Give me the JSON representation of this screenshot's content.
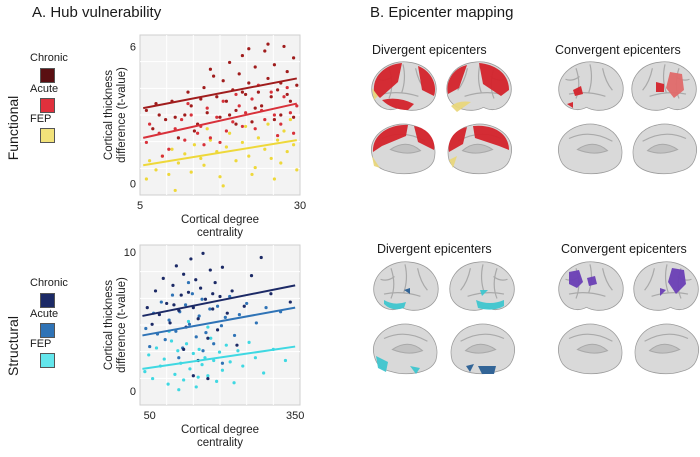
{
  "panel_a": {
    "title": "A. Hub vulnerability"
  },
  "panel_b": {
    "title": "B. Epicenter mapping",
    "functional": {
      "divergent_title": "Divergent epicenters",
      "convergent_title": "Convergent epicenters"
    },
    "structural": {
      "divergent_title": "Divergent epicenters",
      "convergent_title": "Convergent epicenters"
    }
  },
  "rows": {
    "functional": "Functional",
    "structural": "Structural"
  },
  "legend_functional": [
    {
      "label": "Chronic",
      "color": "#5a0f12"
    },
    {
      "label": "Acute",
      "color": "#e0303c"
    },
    {
      "label": "FEP",
      "color": "#f2e27a"
    }
  ],
  "legend_structural": [
    {
      "label": "Chronic",
      "color": "#1c2a66"
    },
    {
      "label": "Acute",
      "color": "#2f73b6"
    },
    {
      "label": "FEP",
      "color": "#63e6ec"
    }
  ],
  "brain_colors": {
    "cortex": "#d9d9d9",
    "sulcus": "#a9a9a9",
    "func_red": "#d4232b",
    "func_yellow": "#e9d77c",
    "func_light_red": "#e06a6a",
    "struct_cyan": "#3fc6cf",
    "struct_blue": "#2a5f94",
    "struct_purple": "#6a3fb5"
  },
  "chart_data": [
    {
      "type": "scatter",
      "name": "functional",
      "xlabel": "Cortical degree centrality",
      "ylabel": "Cortical thickness difference  (t-value)",
      "xlim": [
        5,
        30
      ],
      "ylim": [
        -0.5,
        6.5
      ],
      "xticks": [
        5,
        30
      ],
      "yticks": [
        0,
        6
      ],
      "series": [
        {
          "name": "Chronic",
          "color": "#a01c1c",
          "fit": [
            [
              5.5,
              3.3
            ],
            [
              29.5,
              4.6
            ]
          ],
          "points": [
            [
              6,
              3.2
            ],
            [
              7,
              2.4
            ],
            [
              7.5,
              3.5
            ],
            [
              9,
              2.8
            ],
            [
              10,
              3.6
            ],
            [
              11,
              2.0
            ],
            [
              12,
              3.0
            ],
            [
              12.5,
              4.0
            ],
            [
              13,
              3.4
            ],
            [
              14,
              2.6
            ],
            [
              15,
              4.2
            ],
            [
              15.5,
              3.1
            ],
            [
              16,
              5.0
            ],
            [
              17,
              3.8
            ],
            [
              17.5,
              2.9
            ],
            [
              18,
              4.5
            ],
            [
              18.5,
              3.6
            ],
            [
              19,
              5.3
            ],
            [
              19.5,
              4.1
            ],
            [
              20,
              3.2
            ],
            [
              20.5,
              4.8
            ],
            [
              21,
              5.6
            ],
            [
              21.5,
              3.9
            ],
            [
              22,
              4.4
            ],
            [
              22.5,
              2.7
            ],
            [
              23,
              5.1
            ],
            [
              23.5,
              4.0
            ],
            [
              24,
              3.4
            ],
            [
              24.5,
              5.8
            ],
            [
              25,
              4.6
            ],
            [
              25.5,
              3.8
            ],
            [
              26,
              5.2
            ],
            [
              26.5,
              4.1
            ],
            [
              27,
              3.0
            ],
            [
              27.5,
              6.0
            ],
            [
              28,
              4.9
            ],
            [
              28.5,
              3.6
            ],
            [
              29,
              5.5
            ],
            [
              29.5,
              4.3
            ],
            [
              10.5,
              2.9
            ],
            [
              14.5,
              3.7
            ],
            [
              20,
              2.6
            ],
            [
              23,
              3.3
            ],
            [
              26,
              2.8
            ],
            [
              28,
              3.9
            ],
            [
              8,
              3.0
            ],
            [
              16.5,
              4.7
            ],
            [
              22,
              5.9
            ],
            [
              25,
              6.1
            ],
            [
              29,
              2.9
            ],
            [
              19,
              3.0
            ],
            [
              13.5,
              2.3
            ],
            [
              21,
              4.0
            ],
            [
              27,
              4.4
            ]
          ]
        },
        {
          "name": "Acute",
          "color": "#d8313a",
          "fit": [
            [
              5.5,
              2.0
            ],
            [
              29.5,
              3.5
            ]
          ],
          "points": [
            [
              6,
              1.8
            ],
            [
              6.5,
              2.6
            ],
            [
              8,
              2.2
            ],
            [
              9.5,
              1.5
            ],
            [
              10.5,
              2.4
            ],
            [
              11.5,
              2.8
            ],
            [
              12,
              1.9
            ],
            [
              13,
              3.0
            ],
            [
              14,
              2.2
            ],
            [
              14.5,
              2.5
            ],
            [
              15.5,
              3.3
            ],
            [
              16,
              2.0
            ],
            [
              17,
              2.9
            ],
            [
              18,
              3.6
            ],
            [
              18.5,
              2.3
            ],
            [
              19.5,
              2.7
            ],
            [
              20,
              3.9
            ],
            [
              21,
              2.5
            ],
            [
              21.5,
              3.1
            ],
            [
              22.5,
              3.7
            ],
            [
              23,
              2.4
            ],
            [
              24,
              3.2
            ],
            [
              24.5,
              2.8
            ],
            [
              25.5,
              4.0
            ],
            [
              26,
              3.0
            ],
            [
              27,
              2.6
            ],
            [
              27.5,
              3.8
            ],
            [
              28.5,
              3.1
            ],
            [
              29,
              2.2
            ],
            [
              29.5,
              3.4
            ],
            [
              8.5,
              1.2
            ],
            [
              12.5,
              3.5
            ],
            [
              17.5,
              1.8
            ],
            [
              23.5,
              4.3
            ],
            [
              26.5,
              2.1
            ],
            [
              20.5,
              3.4
            ],
            [
              15,
              1.7
            ],
            [
              28,
              4.2
            ]
          ]
        },
        {
          "name": "FEP",
          "color": "#eed83a",
          "fit": [
            [
              5.5,
              0.8
            ],
            [
              29.5,
              1.9
            ]
          ],
          "points": [
            [
              6,
              0.2
            ],
            [
              6.5,
              1.0
            ],
            [
              7.5,
              0.6
            ],
            [
              8.5,
              1.2
            ],
            [
              9.5,
              0.4
            ],
            [
              10,
              1.5
            ],
            [
              11,
              0.9
            ],
            [
              12,
              1.3
            ],
            [
              13,
              0.5
            ],
            [
              13.5,
              1.7
            ],
            [
              14.5,
              1.1
            ],
            [
              15,
              0.8
            ],
            [
              16,
              1.9
            ],
            [
              17,
              1.4
            ],
            [
              17.5,
              0.3
            ],
            [
              18.5,
              1.6
            ],
            [
              19,
              2.2
            ],
            [
              20,
              1.0
            ],
            [
              21,
              1.8
            ],
            [
              21.5,
              2.5
            ],
            [
              22,
              1.2
            ],
            [
              23,
              0.7
            ],
            [
              23.5,
              2.0
            ],
            [
              24.5,
              1.5
            ],
            [
              25,
              2.6
            ],
            [
              25.5,
              1.1
            ],
            [
              26.5,
              1.9
            ],
            [
              27,
              0.9
            ],
            [
              27.5,
              2.3
            ],
            [
              28,
              1.4
            ],
            [
              28.5,
              2.8
            ],
            [
              29,
              1.7
            ],
            [
              29.5,
              0.6
            ],
            [
              10.5,
              -0.3
            ],
            [
              18,
              -0.1
            ],
            [
              26,
              0.2
            ],
            [
              15.5,
              2.4
            ],
            [
              22.5,
              0.4
            ]
          ]
        }
      ]
    },
    {
      "type": "scatter",
      "name": "structural",
      "xlabel": "Cortical degree centrality",
      "ylabel": "Cortical thickness difference  (t-value)",
      "xlim": [
        30,
        360
      ],
      "ylim": [
        -1,
        10.5
      ],
      "xticks": [
        50,
        350
      ],
      "yticks": [
        0,
        10
      ],
      "series": [
        {
          "name": "Chronic",
          "color": "#1c2a66",
          "fit": [
            [
              35,
              5.4
            ],
            [
              350,
              7.6
            ]
          ],
          "points": [
            [
              45,
              6.0
            ],
            [
              55,
              4.8
            ],
            [
              62,
              7.2
            ],
            [
              70,
              5.5
            ],
            [
              78,
              8.1
            ],
            [
              85,
              6.3
            ],
            [
              92,
              4.9
            ],
            [
              98,
              7.6
            ],
            [
              105,
              9.0
            ],
            [
              110,
              5.8
            ],
            [
              115,
              6.9
            ],
            [
              120,
              8.4
            ],
            [
              125,
              4.6
            ],
            [
              130,
              7.1
            ],
            [
              135,
              9.5
            ],
            [
              140,
              6.0
            ],
            [
              145,
              8.0
            ],
            [
              150,
              5.2
            ],
            [
              155,
              7.4
            ],
            [
              160,
              9.9
            ],
            [
              165,
              6.6
            ],
            [
              170,
              3.8
            ],
            [
              175,
              8.7
            ],
            [
              180,
              5.9
            ],
            [
              185,
              7.8
            ],
            [
              190,
              4.4
            ],
            [
              195,
              6.8
            ],
            [
              200,
              8.9
            ],
            [
              210,
              5.6
            ],
            [
              220,
              7.2
            ],
            [
              230,
              3.3
            ],
            [
              245,
              6.1
            ],
            [
              260,
              8.3
            ],
            [
              280,
              9.6
            ],
            [
              300,
              7.0
            ],
            [
              340,
              6.4
            ],
            [
              120,
              3.0
            ],
            [
              150,
              2.2
            ],
            [
              140,
              1.1
            ],
            [
              170,
              0.9
            ],
            [
              100,
              6.2
            ],
            [
              180,
              7.0
            ]
          ]
        },
        {
          "name": "Acute",
          "color": "#2f73b6",
          "fit": [
            [
              35,
              4.0
            ],
            [
              350,
              6.0
            ]
          ],
          "points": [
            [
              42,
              4.5
            ],
            [
              50,
              3.2
            ],
            [
              58,
              5.6
            ],
            [
              66,
              4.1
            ],
            [
              74,
              6.4
            ],
            [
              82,
              3.7
            ],
            [
              90,
              5.1
            ],
            [
              97,
              6.9
            ],
            [
              104,
              4.3
            ],
            [
              112,
              5.7
            ],
            [
              118,
              3.1
            ],
            [
              124,
              6.2
            ],
            [
              132,
              4.8
            ],
            [
              138,
              7.0
            ],
            [
              146,
              3.9
            ],
            [
              152,
              5.4
            ],
            [
              158,
              6.6
            ],
            [
              166,
              4.2
            ],
            [
              174,
              5.9
            ],
            [
              182,
              3.4
            ],
            [
              190,
              6.1
            ],
            [
              198,
              4.7
            ],
            [
              206,
              5.3
            ],
            [
              215,
              6.8
            ],
            [
              225,
              4.0
            ],
            [
              235,
              5.5
            ],
            [
              250,
              6.3
            ],
            [
              270,
              4.9
            ],
            [
              290,
              6.0
            ],
            [
              320,
              5.7
            ],
            [
              110,
              2.4
            ],
            [
              160,
              2.9
            ],
            [
              200,
              2.0
            ],
            [
              130,
              7.8
            ]
          ]
        },
        {
          "name": "FEP",
          "color": "#3fd8e2",
          "fit": [
            [
              35,
              1.6
            ],
            [
              350,
              3.2
            ]
          ],
          "points": [
            [
              40,
              1.4
            ],
            [
              48,
              2.6
            ],
            [
              56,
              0.9
            ],
            [
              64,
              3.1
            ],
            [
              72,
              1.8
            ],
            [
              80,
              2.3
            ],
            [
              88,
              0.5
            ],
            [
              95,
              3.6
            ],
            [
              102,
              1.2
            ],
            [
              108,
              2.9
            ],
            [
              114,
              2.0
            ],
            [
              120,
              0.8
            ],
            [
              126,
              3.4
            ],
            [
              133,
              1.6
            ],
            [
              140,
              2.7
            ],
            [
              146,
              0.3
            ],
            [
              152,
              3.0
            ],
            [
              158,
              1.9
            ],
            [
              164,
              2.4
            ],
            [
              170,
              1.1
            ],
            [
              176,
              3.8
            ],
            [
              182,
              2.2
            ],
            [
              188,
              0.7
            ],
            [
              194,
              2.8
            ],
            [
              200,
              1.5
            ],
            [
              208,
              3.3
            ],
            [
              216,
              2.1
            ],
            [
              224,
              0.6
            ],
            [
              232,
              2.9
            ],
            [
              242,
              1.8
            ],
            [
              255,
              3.5
            ],
            [
              268,
              2.4
            ],
            [
              285,
              1.3
            ],
            [
              305,
              3.0
            ],
            [
              330,
              2.2
            ],
            [
              90,
              4.3
            ],
            [
              130,
              5.0
            ],
            [
              170,
              4.6
            ],
            [
              110,
              0.1
            ],
            [
              150,
              1.0
            ]
          ]
        }
      ]
    }
  ]
}
